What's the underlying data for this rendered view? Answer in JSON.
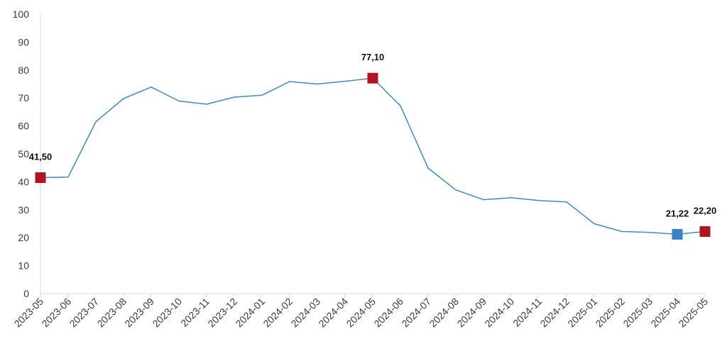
{
  "chart_data": {
    "type": "line",
    "title": "",
    "xlabel": "",
    "ylabel": "",
    "categories": [
      "2023-05",
      "2023-06",
      "2023-07",
      "2023-08",
      "2023-09",
      "2023-10",
      "2023-11",
      "2023-12",
      "2024-01",
      "2024-02",
      "2024-03",
      "2024-04",
      "2024-05",
      "2024-06",
      "2024-07",
      "2024-08",
      "2024-09",
      "2024-10",
      "2024-11",
      "2024-12",
      "2025-01",
      "2025-02",
      "2025-03",
      "2025-04",
      "2025-05"
    ],
    "series": [
      {
        "values": [
          41.5,
          41.7,
          61.5,
          69.8,
          73.9,
          68.9,
          67.8,
          70.3,
          71.0,
          75.9,
          75.0,
          76.0,
          77.1,
          67.2,
          44.9,
          37.1,
          33.6,
          34.3,
          33.3,
          32.8,
          25.0,
          22.2,
          21.9,
          21.22,
          22.2
        ],
        "color": "#3a8bc8"
      }
    ],
    "ylim": [
      0,
      100
    ],
    "yticks": [
      0,
      10,
      20,
      30,
      40,
      50,
      60,
      70,
      80,
      90,
      100
    ],
    "grid": false,
    "legend": "none",
    "highlights": [
      {
        "index": 0,
        "label": "41,50",
        "color": "#b0141c"
      },
      {
        "index": 12,
        "label": "77,10",
        "color": "#b0141c"
      },
      {
        "index": 23,
        "label": "21,22",
        "color": "#3a82c4"
      },
      {
        "index": 24,
        "label": "22,20",
        "color": "#b0141c"
      }
    ]
  }
}
